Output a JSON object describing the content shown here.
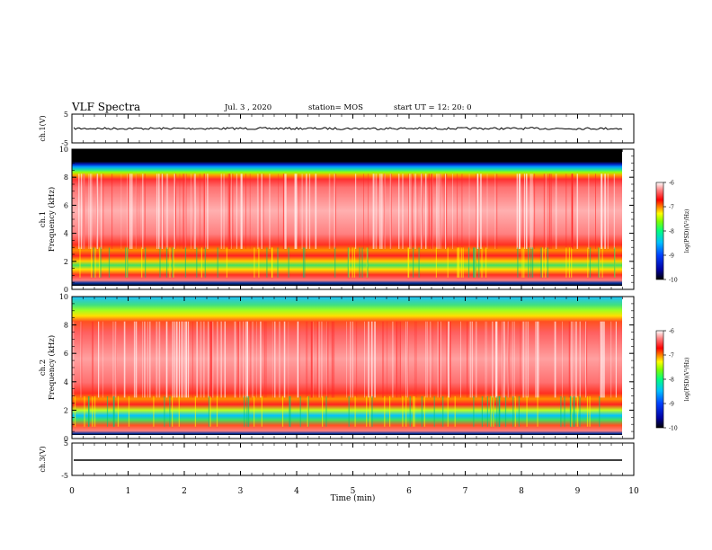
{
  "header": {
    "title": "VLF Spectra",
    "date": "Jul. 3 , 2020",
    "station": "station= MOS",
    "start": "start UT = 12: 20: 0"
  },
  "chart_data": [
    {
      "type": "line",
      "panel": "ch1-waveform",
      "ylabel": "ch.1(V)",
      "yticks": [
        "5",
        "-5"
      ],
      "ylim": [
        -5,
        5
      ],
      "series": [
        {
          "values_description_level": 0.0
        }
      ]
    },
    {
      "type": "heatmap",
      "panel": "ch1-spectrogram",
      "ylabel": "ch.1",
      "ylabel2": "Frequency (kHz)",
      "yticks": [
        "0",
        "2",
        "4",
        "6",
        "8",
        "10"
      ],
      "ylim": [
        0,
        10
      ],
      "colorbar": {
        "label": "log(PSD)(V²/Hz)",
        "ticks": [
          "-6",
          "-7",
          "-8",
          "-9",
          "-10"
        ],
        "range": [
          -10,
          -6
        ]
      }
    },
    {
      "type": "heatmap",
      "panel": "ch2-spectrogram",
      "ylabel": "ch.2",
      "ylabel2": "Frequency (kHz)",
      "yticks": [
        "0",
        "2",
        "4",
        "6",
        "8",
        "10"
      ],
      "ylim": [
        0,
        10
      ],
      "colorbar": {
        "label": "log(PSD)(V²/Hz)",
        "ticks": [
          "-6",
          "-7",
          "-8",
          "-9",
          "-10"
        ],
        "range": [
          -10,
          -6
        ]
      }
    },
    {
      "type": "line",
      "panel": "ch3-waveform",
      "ylabel": "ch.3(V)",
      "yticks": [
        "5",
        "-5"
      ],
      "ylim": [
        -5,
        5
      ]
    }
  ],
  "xaxis": {
    "label": "Time (min)",
    "ticks": [
      "0",
      "1",
      "2",
      "3",
      "4",
      "5",
      "6",
      "7",
      "8",
      "9",
      "10"
    ],
    "range": [
      0,
      10
    ]
  },
  "colors": {
    "colormap": [
      "#000080",
      "#0000ff",
      "#00b0ff",
      "#00e0c0",
      "#40ff40",
      "#ffff00",
      "#ff8000",
      "#ff0000",
      "#ff6060",
      "#ffffff"
    ]
  }
}
